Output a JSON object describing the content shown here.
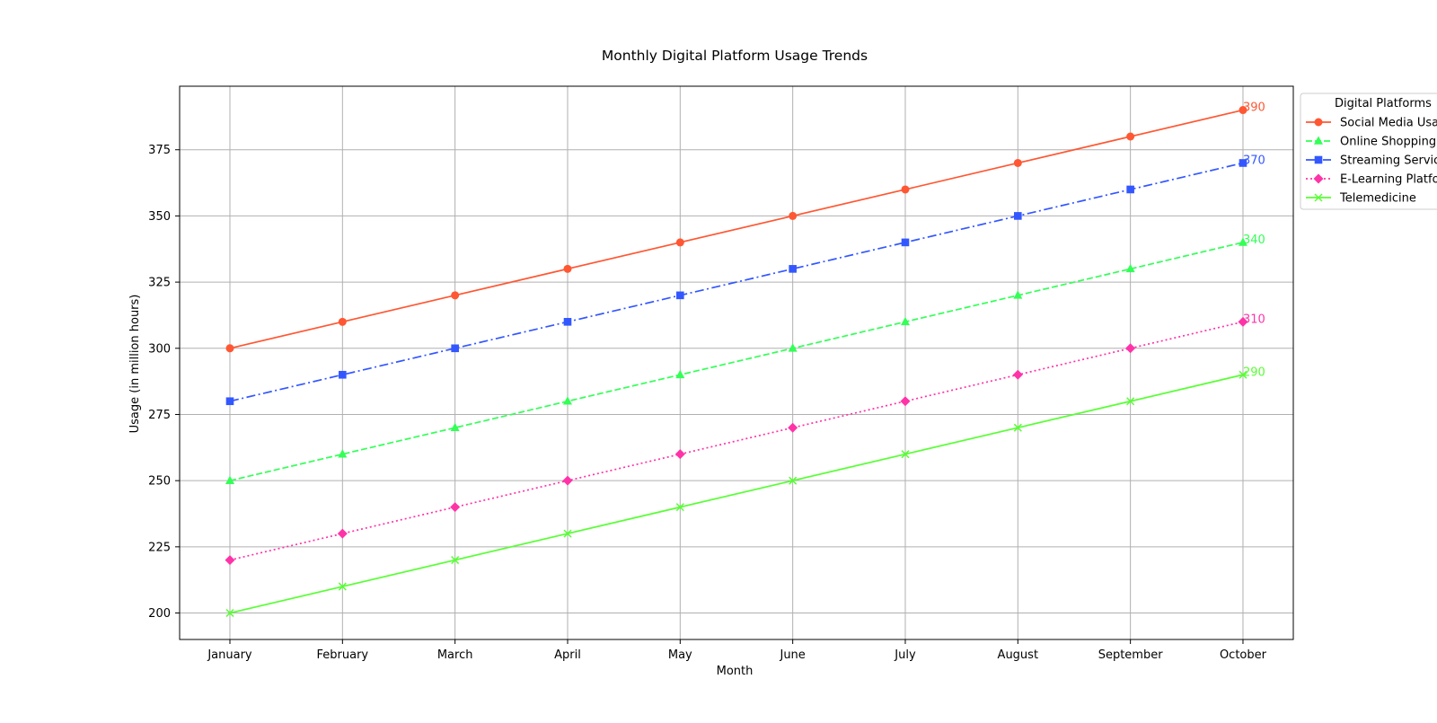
{
  "chart_data": {
    "type": "line",
    "title": "Monthly Digital Platform Usage Trends",
    "xlabel": "Month",
    "ylabel": "Usage (in million hours)",
    "categories": [
      "January",
      "February",
      "March",
      "April",
      "May",
      "June",
      "July",
      "August",
      "September",
      "October"
    ],
    "ylim": [
      190,
      399
    ],
    "yticks": [
      200,
      225,
      250,
      275,
      300,
      325,
      350,
      375
    ],
    "grid": true,
    "legend": {
      "title": "Digital Platforms",
      "placement": "outside top-right"
    },
    "series": [
      {
        "name": "Social Media Usage",
        "color": "#ff5733",
        "marker": "circle",
        "line_style": "solid",
        "values": [
          300,
          310,
          320,
          330,
          340,
          350,
          360,
          370,
          380,
          390
        ],
        "end_label": "390"
      },
      {
        "name": "Online Shopping",
        "color": "#33ff57",
        "marker": "triangle",
        "line_style": "dashed",
        "values": [
          250,
          260,
          270,
          280,
          290,
          300,
          310,
          320,
          330,
          340
        ],
        "end_label": "340"
      },
      {
        "name": "Streaming Services",
        "color": "#3357ff",
        "marker": "square",
        "line_style": "dashdot",
        "values": [
          280,
          290,
          300,
          310,
          320,
          330,
          340,
          350,
          360,
          370
        ],
        "end_label": "370"
      },
      {
        "name": "E-Learning Platforms",
        "color": "#ff33a8",
        "marker": "diamond",
        "line_style": "dotted",
        "values": [
          220,
          230,
          240,
          250,
          260,
          270,
          280,
          290,
          300,
          310
        ],
        "end_label": "310"
      },
      {
        "name": "Telemedicine",
        "color": "#57ff33",
        "marker": "x",
        "line_style": "solid",
        "values": [
          200,
          210,
          220,
          230,
          240,
          250,
          260,
          270,
          280,
          290
        ],
        "end_label": "290"
      }
    ]
  }
}
